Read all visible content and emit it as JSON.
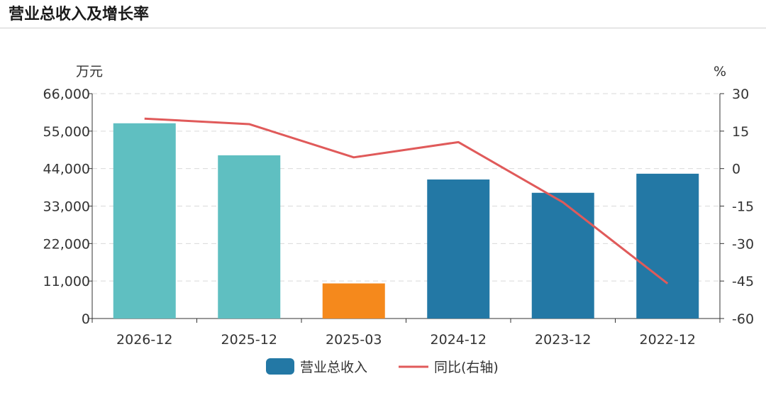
{
  "header": {
    "title": "营业总收入及增长率"
  },
  "chart_data": {
    "type": "bar",
    "categories": [
      "2026-12",
      "2025-12",
      "2025-03",
      "2024-12",
      "2023-12",
      "2022-12"
    ],
    "series": [
      {
        "name": "营业总收入",
        "type": "bar",
        "axis": "left",
        "values": [
          57300,
          47900,
          10300,
          40800,
          36900,
          42500
        ],
        "colors": [
          "#5fbfc1",
          "#5fbfc1",
          "#f5891c",
          "#2378a5",
          "#2378a5",
          "#2378a5"
        ]
      },
      {
        "name": "同比(右轴)",
        "type": "line",
        "axis": "right",
        "values": [
          20.0,
          17.8,
          4.5,
          10.6,
          -13.5,
          -46.0
        ],
        "color": "#e05a5a"
      }
    ],
    "y_left": {
      "unit": "万元",
      "ylim": [
        0,
        66000
      ],
      "ticks": [
        "0",
        "11,000",
        "22,000",
        "33,000",
        "44,000",
        "55,000",
        "66,000"
      ]
    },
    "y_right": {
      "unit": "%",
      "ylim": [
        -60,
        30
      ],
      "ticks": [
        "-60",
        "-45",
        "-30",
        "-15",
        "0",
        "15",
        "30"
      ]
    },
    "grid": true,
    "legend_position": "bottom-center",
    "legend_bar_color": "#2378a5"
  }
}
